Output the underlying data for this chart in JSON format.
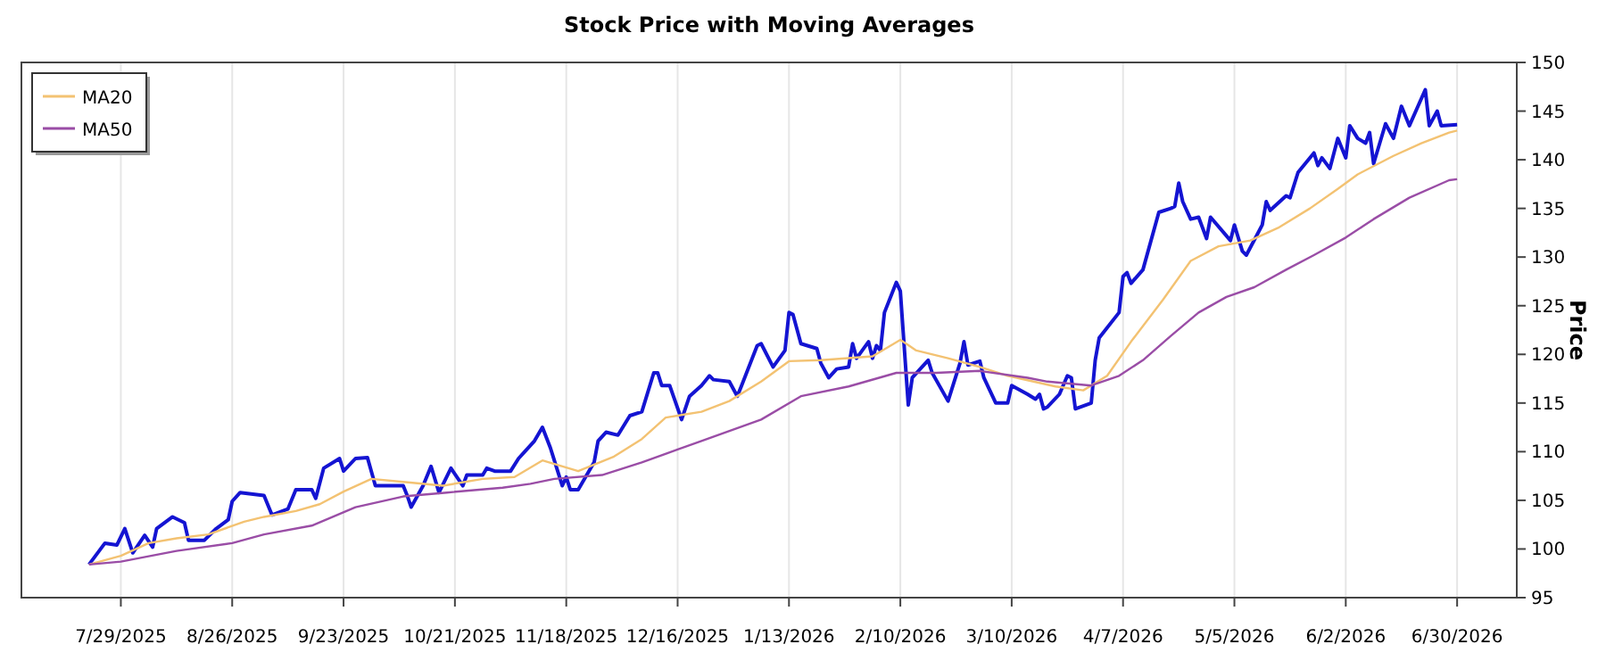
{
  "chart_data": {
    "type": "line",
    "title": "Stock Price with Moving Averages",
    "ylabel": "Price",
    "xlim": [
      "2025-07-04",
      "2026-07-15"
    ],
    "ylim": [
      95,
      150
    ],
    "xticks": [
      {
        "value": "2025-07-29",
        "label": "7/29/2025"
      },
      {
        "value": "2025-08-26",
        "label": "8/26/2025"
      },
      {
        "value": "2025-09-23",
        "label": "9/23/2025"
      },
      {
        "value": "2025-10-21",
        "label": "10/21/2025"
      },
      {
        "value": "2025-11-18",
        "label": "11/18/2025"
      },
      {
        "value": "2025-12-16",
        "label": "12/16/2025"
      },
      {
        "value": "2026-01-13",
        "label": "1/13/2026"
      },
      {
        "value": "2026-02-10",
        "label": "2/10/2026"
      },
      {
        "value": "2026-03-10",
        "label": "3/10/2026"
      },
      {
        "value": "2026-04-07",
        "label": "4/7/2026"
      },
      {
        "value": "2026-05-05",
        "label": "5/5/2026"
      },
      {
        "value": "2026-06-02",
        "label": "6/2/2026"
      },
      {
        "value": "2026-06-30",
        "label": "6/30/2026"
      }
    ],
    "yticks": [
      95,
      100,
      105,
      110,
      115,
      120,
      125,
      130,
      135,
      140,
      145,
      150
    ],
    "grid": "x",
    "legend": "top left",
    "line_style": "solid",
    "marker": "none",
    "series": [
      {
        "color": "#1414d2",
        "x": [
          "2025-07-21",
          "2025-07-25",
          "2025-07-28",
          "2025-07-30",
          "2025-08-01",
          "2025-08-04",
          "2025-08-06",
          "2025-08-07",
          "2025-08-11",
          "2025-08-14",
          "2025-08-15",
          "2025-08-19",
          "2025-08-22",
          "2025-08-25",
          "2025-08-26",
          "2025-08-28",
          "2025-09-03",
          "2025-09-05",
          "2025-09-09",
          "2025-09-11",
          "2025-09-15",
          "2025-09-16",
          "2025-09-18",
          "2025-09-22",
          "2025-09-23",
          "2025-09-26",
          "2025-09-29",
          "2025-10-01",
          "2025-10-08",
          "2025-10-09",
          "2025-10-10",
          "2025-10-13",
          "2025-10-15",
          "2025-10-17",
          "2025-10-20",
          "2025-10-23",
          "2025-10-24",
          "2025-10-28",
          "2025-10-29",
          "2025-10-31",
          "2025-11-04",
          "2025-11-06",
          "2025-11-10",
          "2025-11-12",
          "2025-11-14",
          "2025-11-17",
          "2025-11-18",
          "2025-11-19",
          "2025-11-21",
          "2025-11-25",
          "2025-11-26",
          "2025-11-28",
          "2025-12-01",
          "2025-12-04",
          "2025-12-07",
          "2025-12-10",
          "2025-12-11",
          "2025-12-12",
          "2025-12-14",
          "2025-12-17",
          "2025-12-19",
          "2025-12-22",
          "2025-12-24",
          "2025-12-25",
          "2025-12-29",
          "2025-12-31",
          "2026-01-01",
          "2026-01-05",
          "2026-01-06",
          "2026-01-09",
          "2026-01-12",
          "2026-01-13",
          "2026-01-14",
          "2026-01-16",
          "2026-01-20",
          "2026-01-21",
          "2026-01-23",
          "2026-01-25",
          "2026-01-28",
          "2026-01-29",
          "2026-01-30",
          "2026-02-02",
          "2026-02-03",
          "2026-02-04",
          "2026-02-05",
          "2026-02-06",
          "2026-02-09",
          "2026-02-10",
          "2026-02-12",
          "2026-02-13",
          "2026-02-17",
          "2026-02-18",
          "2026-02-22",
          "2026-02-25",
          "2026-02-26",
          "2026-02-27",
          "2026-03-02",
          "2026-03-03",
          "2026-03-06",
          "2026-03-09",
          "2026-03-10",
          "2026-03-14",
          "2026-03-16",
          "2026-03-17",
          "2026-03-18",
          "2026-03-19",
          "2026-03-22",
          "2026-03-24",
          "2026-03-25",
          "2026-03-26",
          "2026-03-30",
          "2026-03-31",
          "2026-04-01",
          "2026-04-06",
          "2026-04-07",
          "2026-04-08",
          "2026-04-09",
          "2026-04-12",
          "2026-04-16",
          "2026-04-19",
          "2026-04-20",
          "2026-04-21",
          "2026-04-22",
          "2026-04-24",
          "2026-04-26",
          "2026-04-28",
          "2026-04-29",
          "2026-05-04",
          "2026-05-05",
          "2026-05-07",
          "2026-05-08",
          "2026-05-12",
          "2026-05-13",
          "2026-05-14",
          "2026-05-18",
          "2026-05-19",
          "2026-05-21",
          "2026-05-25",
          "2026-05-26",
          "2026-05-27",
          "2026-05-29",
          "2026-05-31",
          "2026-06-02",
          "2026-06-03",
          "2026-06-05",
          "2026-06-07",
          "2026-06-08",
          "2026-06-09",
          "2026-06-12",
          "2026-06-14",
          "2026-06-16",
          "2026-06-18",
          "2026-06-22",
          "2026-06-23",
          "2026-06-25",
          "2026-06-26",
          "2026-06-30"
        ],
        "values": [
          98.4,
          100.6,
          100.4,
          102.1,
          99.6,
          101.4,
          100.2,
          102.1,
          103.3,
          102.7,
          100.9,
          100.9,
          102.1,
          103,
          104.9,
          105.8,
          105.5,
          103.5,
          104.1,
          106.1,
          106.1,
          105.2,
          108.3,
          109.3,
          108,
          109.3,
          109.4,
          106.5,
          106.5,
          105.5,
          104.3,
          106.5,
          108.5,
          105.8,
          108.3,
          106.5,
          107.6,
          107.6,
          108.3,
          108,
          108,
          109.3,
          111.1,
          112.5,
          110.4,
          106.5,
          107.4,
          106.1,
          106.1,
          108.9,
          111.1,
          112,
          111.7,
          113.7,
          114.1,
          118.1,
          118.1,
          116.8,
          116.8,
          113.3,
          115.7,
          116.8,
          117.8,
          117.4,
          117.2,
          115.7,
          116.7,
          120.9,
          121.1,
          118.7,
          120.4,
          124.3,
          124.1,
          121.1,
          120.6,
          119.1,
          117.6,
          118.5,
          118.7,
          121.1,
          119.6,
          121.3,
          119.6,
          120.9,
          120.4,
          124.3,
          127.4,
          126.5,
          114.8,
          117.6,
          119.4,
          118.1,
          115.2,
          119.1,
          121.3,
          118.9,
          119.3,
          117.6,
          115,
          115,
          116.8,
          115.9,
          115.4,
          115.9,
          114.4,
          114.6,
          115.9,
          117.8,
          117.6,
          114.4,
          115,
          119.4,
          121.7,
          124.3,
          128,
          128.4,
          127.3,
          128.7,
          134.6,
          135,
          135.2,
          137.6,
          135.7,
          133.9,
          134.1,
          131.9,
          134.1,
          131.7,
          133.3,
          130.6,
          130.2,
          133.3,
          135.7,
          134.8,
          136.3,
          136.1,
          138.7,
          140.7,
          139.4,
          140.2,
          139.1,
          142.2,
          140.2,
          143.5,
          142.2,
          141.7,
          142.8,
          139.6,
          143.7,
          142.2,
          145.5,
          143.5,
          147.2,
          143.5,
          145,
          143.5,
          143.6
        ]
      },
      {
        "name": "MA20",
        "color": "#f3c272",
        "x": [
          "2025-07-21",
          "2025-07-29",
          "2025-08-05",
          "2025-08-12",
          "2025-08-20",
          "2025-08-29",
          "2025-09-03",
          "2025-09-11",
          "2025-09-17",
          "2025-09-23",
          "2025-09-30",
          "2025-10-08",
          "2025-10-18",
          "2025-10-28",
          "2025-11-05",
          "2025-11-12",
          "2025-11-21",
          "2025-11-30",
          "2025-12-07",
          "2025-12-13",
          "2025-12-22",
          "2025-12-29",
          "2026-01-06",
          "2026-01-13",
          "2026-01-21",
          "2026-02-03",
          "2026-02-10",
          "2026-02-14",
          "2026-02-22",
          "2026-03-02",
          "2026-03-09",
          "2026-03-21",
          "2026-03-28",
          "2026-04-03",
          "2026-04-09",
          "2026-04-17",
          "2026-04-24",
          "2026-05-01",
          "2026-05-09",
          "2026-05-16",
          "2026-05-24",
          "2026-05-31",
          "2026-06-05",
          "2026-06-14",
          "2026-06-21",
          "2026-06-28",
          "2026-06-30"
        ],
        "values": [
          98.4,
          99.3,
          100.6,
          101.1,
          101.5,
          102.8,
          103.3,
          103.9,
          104.6,
          105.9,
          107.2,
          106.9,
          106.5,
          107.2,
          107.4,
          109.1,
          108,
          109.5,
          111.3,
          113.5,
          114.1,
          115.2,
          117.2,
          119.3,
          119.4,
          119.8,
          121.5,
          120.4,
          119.6,
          118.7,
          117.8,
          116.7,
          116.3,
          117.8,
          121.3,
          125.6,
          129.6,
          131.1,
          131.7,
          133,
          135,
          137,
          138.5,
          140.4,
          141.7,
          142.8,
          143
        ]
      },
      {
        "name": "MA50",
        "color": "#9a4da6",
        "x": [
          "2025-07-21",
          "2025-07-29",
          "2025-08-12",
          "2025-08-26",
          "2025-09-03",
          "2025-09-15",
          "2025-09-26",
          "2025-10-08",
          "2025-10-19",
          "2025-11-02",
          "2025-11-09",
          "2025-11-15",
          "2025-11-27",
          "2025-12-07",
          "2025-12-22",
          "2026-01-06",
          "2026-01-16",
          "2026-01-28",
          "2026-02-09",
          "2026-02-19",
          "2026-03-02",
          "2026-03-14",
          "2026-03-19",
          "2026-03-30",
          "2026-04-06",
          "2026-04-12",
          "2026-04-19",
          "2026-04-26",
          "2026-05-03",
          "2026-05-10",
          "2026-05-18",
          "2026-05-25",
          "2026-06-02",
          "2026-06-09",
          "2026-06-18",
          "2026-06-28",
          "2026-06-30"
        ],
        "values": [
          98.4,
          98.7,
          99.8,
          100.6,
          101.5,
          102.4,
          104.3,
          105.4,
          105.8,
          106.3,
          106.7,
          107.2,
          107.6,
          108.9,
          111.1,
          113.3,
          115.7,
          116.7,
          118.1,
          118.1,
          118.3,
          117.6,
          117.2,
          116.8,
          117.8,
          119.4,
          121.9,
          124.3,
          125.9,
          126.9,
          128.7,
          130.2,
          132,
          133.9,
          136.1,
          137.9,
          138
        ]
      }
    ]
  }
}
